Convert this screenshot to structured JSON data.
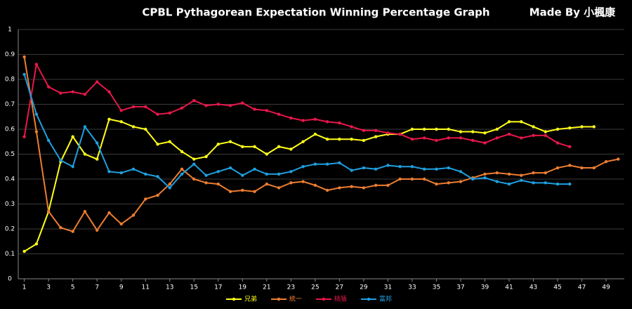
{
  "chart_data": {
    "type": "line",
    "title": "CPBL Pythagorean Expectation Winning Percentage Graph",
    "subtitle": "Made By 小楓康",
    "x": [
      1,
      2,
      3,
      4,
      5,
      6,
      7,
      8,
      9,
      10,
      11,
      12,
      13,
      14,
      15,
      16,
      17,
      18,
      19,
      20,
      21,
      22,
      23,
      24,
      25,
      26,
      27,
      28,
      29,
      30,
      31,
      32,
      33,
      34,
      35,
      36,
      37,
      38,
      39,
      40,
      41,
      42,
      43,
      44,
      45,
      46,
      47,
      48,
      49,
      50
    ],
    "xlim": [
      0.5,
      50.5
    ],
    "xticks": [
      1,
      3,
      5,
      7,
      9,
      11,
      13,
      15,
      17,
      19,
      21,
      23,
      25,
      27,
      29,
      31,
      33,
      35,
      37,
      39,
      41,
      43,
      45,
      47,
      49
    ],
    "ylim": [
      0,
      1
    ],
    "yticks": [
      0,
      0.1,
      0.2,
      0.3,
      0.4,
      0.5,
      0.6,
      0.7,
      0.8,
      0.9,
      1
    ],
    "grid": true,
    "legend": "bottom",
    "series": [
      {
        "name": "兄弟",
        "color": "#ffff1a",
        "values": [
          0.11,
          0.14,
          0.27,
          0.47,
          0.57,
          0.5,
          0.48,
          0.64,
          0.63,
          0.61,
          0.6,
          0.54,
          0.55,
          0.51,
          0.48,
          0.49,
          0.54,
          0.55,
          0.53,
          0.53,
          0.5,
          0.53,
          0.52,
          0.55,
          0.58,
          0.56,
          0.56,
          0.56,
          0.555,
          0.57,
          0.58,
          0.58,
          0.6,
          0.6,
          0.6,
          0.6,
          0.59,
          0.59,
          0.585,
          0.6,
          0.63,
          0.63,
          0.61,
          0.59,
          0.6,
          0.605,
          0.61,
          0.61,
          null,
          null
        ]
      },
      {
        "name": "統一",
        "color": "#ed7d31",
        "values": [
          0.89,
          0.59,
          0.27,
          0.205,
          0.19,
          0.27,
          0.195,
          0.265,
          0.22,
          0.255,
          0.32,
          0.335,
          0.38,
          0.44,
          0.4,
          0.385,
          0.38,
          0.35,
          0.355,
          0.35,
          0.38,
          0.365,
          0.385,
          0.39,
          0.375,
          0.355,
          0.365,
          0.37,
          0.365,
          0.375,
          0.375,
          0.4,
          0.4,
          0.4,
          0.38,
          0.385,
          0.39,
          0.405,
          0.42,
          0.425,
          0.42,
          0.415,
          0.425,
          0.425,
          0.445,
          0.455,
          0.445,
          0.445,
          0.47,
          0.48
        ]
      },
      {
        "name": "桃猿",
        "color": "#e8174a",
        "values": [
          0.57,
          0.86,
          0.77,
          0.745,
          0.75,
          0.74,
          0.79,
          0.75,
          0.675,
          0.69,
          0.69,
          0.66,
          0.665,
          0.685,
          0.715,
          0.695,
          0.7,
          0.695,
          0.705,
          0.68,
          0.675,
          0.66,
          0.645,
          0.635,
          0.64,
          0.63,
          0.625,
          0.61,
          0.595,
          0.595,
          0.585,
          0.58,
          0.56,
          0.565,
          0.555,
          0.565,
          0.565,
          0.555,
          0.545,
          0.565,
          0.58,
          0.565,
          0.575,
          0.575,
          0.545,
          0.53,
          null,
          null,
          null,
          null
        ]
      },
      {
        "name": "富邦",
        "color": "#1ea0e0",
        "values": [
          0.82,
          0.66,
          0.555,
          0.475,
          0.45,
          0.61,
          0.545,
          0.43,
          0.425,
          0.44,
          0.42,
          0.41,
          0.365,
          0.42,
          0.46,
          0.415,
          0.43,
          0.445,
          0.415,
          0.44,
          0.42,
          0.42,
          0.43,
          0.45,
          0.46,
          0.46,
          0.465,
          0.435,
          0.445,
          0.44,
          0.455,
          0.45,
          0.45,
          0.44,
          0.44,
          0.445,
          0.43,
          0.4,
          0.405,
          0.39,
          0.38,
          0.395,
          0.385,
          0.385,
          0.38,
          0.38,
          null,
          null,
          null,
          null
        ]
      }
    ]
  }
}
